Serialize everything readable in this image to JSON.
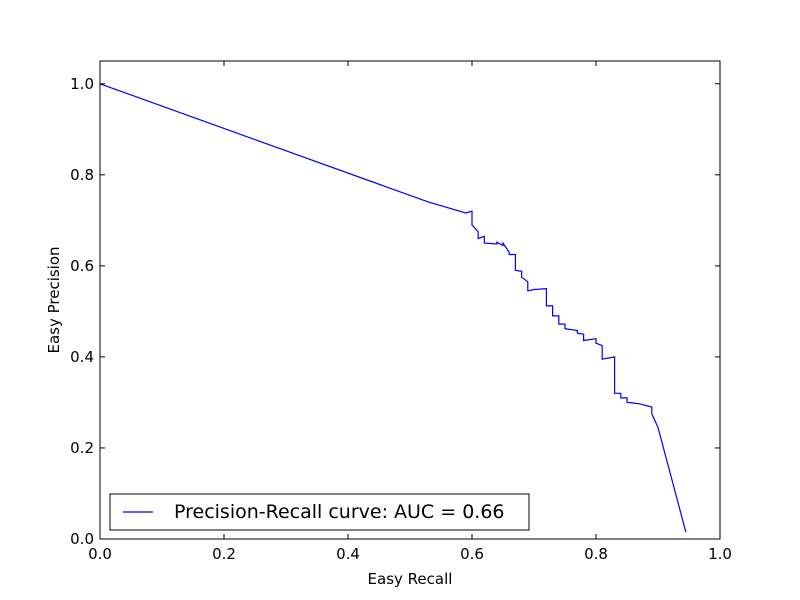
{
  "chart_data": {
    "type": "line",
    "title": "",
    "xlabel": "Easy Recall",
    "ylabel": "Easy Precision",
    "xlim": [
      0.0,
      1.0
    ],
    "ylim": [
      0.0,
      1.05
    ],
    "xticks": [
      "0.0",
      "0.2",
      "0.4",
      "0.6",
      "0.8",
      "1.0"
    ],
    "yticks": [
      "0.0",
      "0.2",
      "0.4",
      "0.6",
      "0.8",
      "1.0"
    ],
    "grid": false,
    "legend_position": "lower-left",
    "series": [
      {
        "name": "Precision-Recall curve: AUC = 0.66",
        "color": "#0000ff",
        "x": [
          0.0,
          0.53,
          0.59,
          0.6,
          0.6,
          0.61,
          0.61,
          0.62,
          0.62,
          0.64,
          0.64,
          0.65,
          0.65,
          0.66,
          0.66,
          0.67,
          0.67,
          0.68,
          0.68,
          0.69,
          0.69,
          0.7,
          0.72,
          0.72,
          0.73,
          0.73,
          0.74,
          0.74,
          0.75,
          0.75,
          0.77,
          0.77,
          0.78,
          0.78,
          0.8,
          0.8,
          0.81,
          0.81,
          0.83,
          0.83,
          0.84,
          0.84,
          0.85,
          0.85,
          0.87,
          0.89,
          0.89,
          0.9,
          0.945
        ],
        "y": [
          1.0,
          0.74,
          0.716,
          0.72,
          0.69,
          0.675,
          0.66,
          0.665,
          0.65,
          0.648,
          0.652,
          0.645,
          0.65,
          0.63,
          0.625,
          0.625,
          0.59,
          0.588,
          0.575,
          0.565,
          0.545,
          0.548,
          0.55,
          0.512,
          0.512,
          0.49,
          0.49,
          0.472,
          0.472,
          0.462,
          0.458,
          0.452,
          0.45,
          0.436,
          0.44,
          0.43,
          0.425,
          0.395,
          0.4,
          0.32,
          0.32,
          0.31,
          0.31,
          0.3,
          0.297,
          0.29,
          0.275,
          0.245,
          0.015
        ]
      }
    ]
  }
}
